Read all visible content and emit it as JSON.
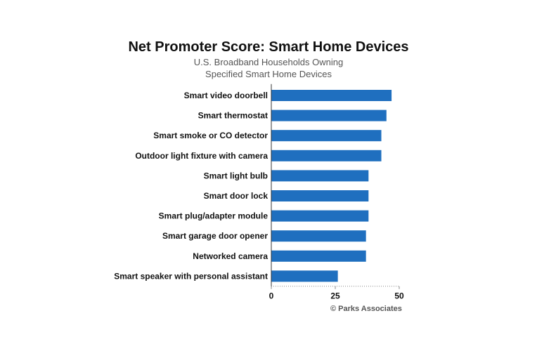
{
  "chart_data": {
    "type": "bar",
    "orientation": "horizontal",
    "title": "Net Promoter Score: Smart Home Devices",
    "subtitle_lines": [
      "U.S. Broadband Households Owning",
      "Specified Smart Home Devices"
    ],
    "categories": [
      "Smart video doorbell",
      "Smart thermostat",
      "Smart smoke or CO detector",
      "Outdoor light fixture with camera",
      "Smart light bulb",
      "Smart door lock",
      "Smart plug/adapter module",
      "Smart garage door opener",
      "Networked camera",
      "Smart speaker with personal assistant"
    ],
    "values": [
      47,
      45,
      43,
      43,
      38,
      38,
      38,
      37,
      37,
      26
    ],
    "xlim": [
      0,
      50
    ],
    "xticks": [
      "0",
      "25",
      "50"
    ],
    "grid": false,
    "bar_color": "#1f6fbf",
    "source": "© Parks Associates"
  }
}
